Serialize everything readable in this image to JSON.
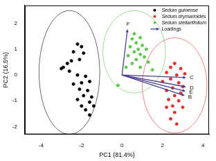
{
  "chart_data": {
    "type": "scatter",
    "x_label": "PC1 (81.4%)",
    "y_label": "PC2 (16.5%)",
    "xlim": [
      -4.8,
      4.3
    ],
    "xticks": [
      -4,
      -2,
      0,
      2,
      4
    ],
    "ylim": [
      -2.3,
      2.7
    ],
    "yticks": [
      -2,
      -1,
      0,
      1,
      2
    ],
    "grid": false,
    "legend": "top right",
    "series": [
      {
        "name": "Sedum guinense",
        "color": "#000000",
        "marker": "circle",
        "x": [
          -2.2,
          -2.0,
          -2.4,
          -1.9,
          -2.1,
          -2.5,
          -2.9,
          -3.0,
          -2.6,
          -2.2,
          -1.8,
          -2.0,
          -1.6,
          -2.4,
          -2.1,
          -1.7,
          -1.9,
          -1.5,
          -2.2,
          -1.6,
          -2.0,
          -1.4,
          -1.8,
          -1.6,
          -2.7
        ],
        "y": [
          1.2,
          1.1,
          0.9,
          0.85,
          0.6,
          0.55,
          0.3,
          0.25,
          0.15,
          0.0,
          -0.05,
          -0.3,
          -0.25,
          -0.35,
          -0.55,
          -0.6,
          -0.8,
          -0.85,
          -0.95,
          -1.05,
          -1.2,
          -1.2,
          -1.35,
          -1.55,
          0.45
        ],
        "ellipse": {
          "center": [
            -2.6,
            0.1
          ],
          "radii": [
            1.5,
            2.4
          ]
        }
      },
      {
        "name": "Sedum drymarioides",
        "color": "#e8302a",
        "marker": "circle",
        "x": [
          2.6,
          2.4,
          2.9,
          2.2,
          2.7,
          3.1,
          2.4,
          2.0,
          2.8,
          3.0,
          2.5,
          2.2,
          2.9,
          2.6,
          2.3,
          2.8,
          2.5,
          2.2,
          3.0,
          2.6,
          2.4,
          2.7
        ],
        "y": [
          0.45,
          0.3,
          0.25,
          0.1,
          0.0,
          0.05,
          -0.15,
          -0.25,
          -0.3,
          -0.45,
          -0.5,
          -0.6,
          -0.7,
          -0.8,
          -0.95,
          -1.0,
          -1.2,
          -1.25,
          -1.25,
          -1.45,
          -1.7,
          -1.9
        ],
        "ellipse": {
          "center": [
            2.6,
            -0.4
          ],
          "radii": [
            1.6,
            1.85
          ]
        }
      },
      {
        "name": "Sedum stellariifolium",
        "color": "#5cc94a",
        "marker": "circle",
        "x": [
          0.6,
          0.5,
          0.9,
          0.7,
          1.0,
          0.4,
          0.8,
          1.2,
          0.6,
          0.9,
          0.3,
          1.1,
          0.7,
          0.5,
          1.3,
          0.9,
          0.2,
          -0.2,
          1.5
        ],
        "y": [
          1.6,
          1.4,
          1.45,
          1.25,
          1.15,
          1.1,
          1.0,
          1.0,
          0.9,
          0.8,
          0.75,
          0.7,
          0.6,
          0.45,
          0.5,
          0.3,
          0.3,
          -0.4,
          0.2
        ],
        "ellipse": {
          "center": [
            0.6,
            0.9
          ],
          "radii": [
            1.55,
            1.6
          ]
        }
      }
    ],
    "loadings": {
      "name": "Loadings",
      "color": "#4b3f91",
      "origin": [
        0,
        0
      ],
      "vectors": [
        {
          "label": "F",
          "x": 0.27,
          "y": 1.78
        },
        {
          "label": "C",
          "x": 3.17,
          "y": -0.1
        },
        {
          "label": "D",
          "x": 3.17,
          "y": -0.46
        },
        {
          "label": "E",
          "x": 3.14,
          "y": -0.63
        },
        {
          "label": "B",
          "x": 3.1,
          "y": -0.8
        }
      ]
    }
  }
}
